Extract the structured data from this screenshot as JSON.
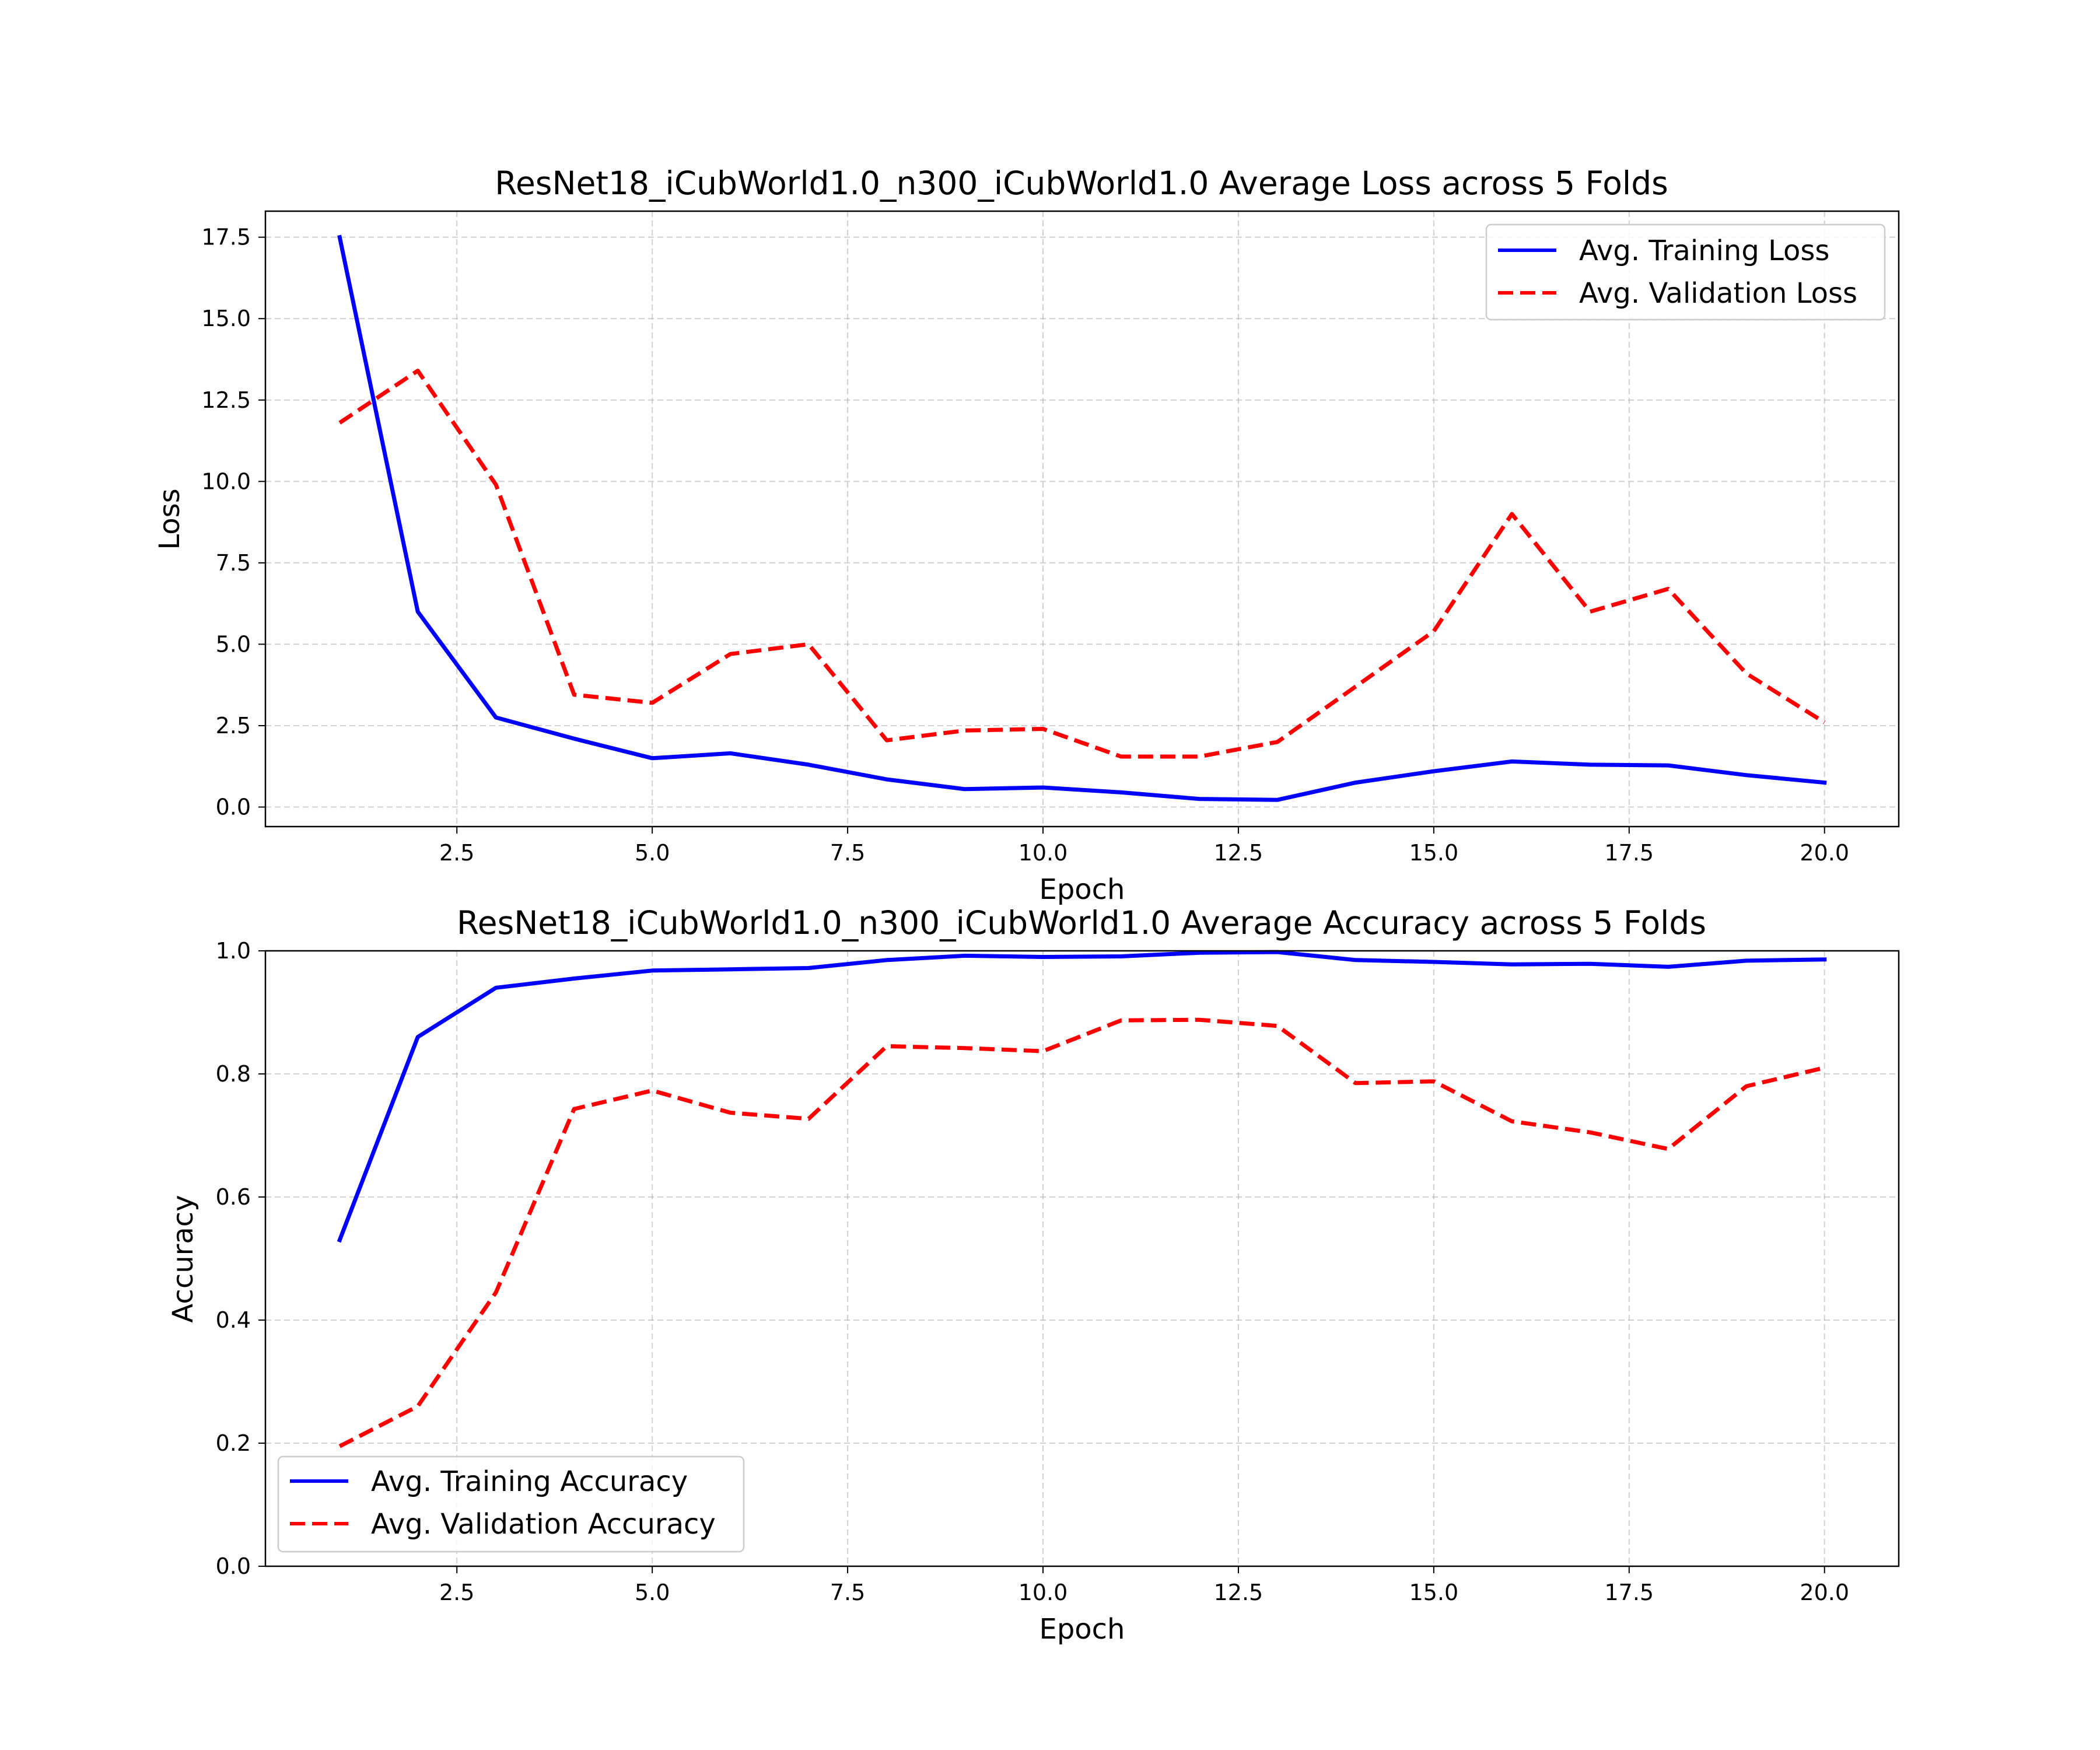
{
  "chart_data": [
    {
      "type": "line",
      "title": "ResNet18_iCubWorld1.0_n300_iCubWorld1.0 Average Loss across 5 Folds",
      "xlabel": "Epoch",
      "ylabel": "Loss",
      "xlim": [
        0.05,
        20.95
      ],
      "ylim": [
        -0.6,
        18.3
      ],
      "xticks": [
        2.5,
        5.0,
        7.5,
        10.0,
        12.5,
        15.0,
        17.5,
        20.0
      ],
      "yticks": [
        0.0,
        2.5,
        5.0,
        7.5,
        10.0,
        12.5,
        15.0,
        17.5
      ],
      "grid": true,
      "legend_position": "top-right",
      "x": [
        1,
        2,
        3,
        4,
        5,
        6,
        7,
        8,
        9,
        10,
        11,
        12,
        13,
        14,
        15,
        16,
        17,
        18,
        19,
        20
      ],
      "series": [
        {
          "name": "Avg. Training Loss",
          "color": "#0000ff",
          "style": "solid",
          "values": [
            17.5,
            6.0,
            2.75,
            2.1,
            1.5,
            1.65,
            1.3,
            0.85,
            0.55,
            0.6,
            0.45,
            0.25,
            0.22,
            0.75,
            1.1,
            1.4,
            1.3,
            1.28,
            0.98,
            0.75
          ]
        },
        {
          "name": "Avg. Validation Loss",
          "color": "#ff0000",
          "style": "dashed",
          "values": [
            11.8,
            13.4,
            9.9,
            3.45,
            3.2,
            4.7,
            5.0,
            2.05,
            2.35,
            2.4,
            1.55,
            1.55,
            2.0,
            3.7,
            5.4,
            9.0,
            6.0,
            6.7,
            4.1,
            2.6
          ]
        }
      ]
    },
    {
      "type": "line",
      "title": "ResNet18_iCubWorld1.0_n300_iCubWorld1.0 Average Accuracy across 5 Folds",
      "xlabel": "Epoch",
      "ylabel": "Accuracy",
      "xlim": [
        0.05,
        20.95
      ],
      "ylim": [
        0.0,
        1.0
      ],
      "xticks": [
        2.5,
        5.0,
        7.5,
        10.0,
        12.5,
        15.0,
        17.5,
        20.0
      ],
      "yticks": [
        0.0,
        0.2,
        0.4,
        0.6,
        0.8,
        1.0
      ],
      "grid": true,
      "legend_position": "bottom-left",
      "x": [
        1,
        2,
        3,
        4,
        5,
        6,
        7,
        8,
        9,
        10,
        11,
        12,
        13,
        14,
        15,
        16,
        17,
        18,
        19,
        20
      ],
      "series": [
        {
          "name": "Avg. Training Accuracy",
          "color": "#0000ff",
          "style": "solid",
          "values": [
            0.53,
            0.86,
            0.94,
            0.955,
            0.968,
            0.97,
            0.972,
            0.985,
            0.992,
            0.99,
            0.991,
            0.997,
            0.998,
            0.985,
            0.982,
            0.978,
            0.979,
            0.974,
            0.984,
            0.986
          ]
        },
        {
          "name": "Avg. Validation Accuracy",
          "color": "#ff0000",
          "style": "dashed",
          "values": [
            0.195,
            0.26,
            0.445,
            0.743,
            0.773,
            0.737,
            0.727,
            0.845,
            0.842,
            0.837,
            0.887,
            0.888,
            0.878,
            0.785,
            0.788,
            0.723,
            0.705,
            0.678,
            0.78,
            0.81
          ]
        }
      ]
    }
  ]
}
